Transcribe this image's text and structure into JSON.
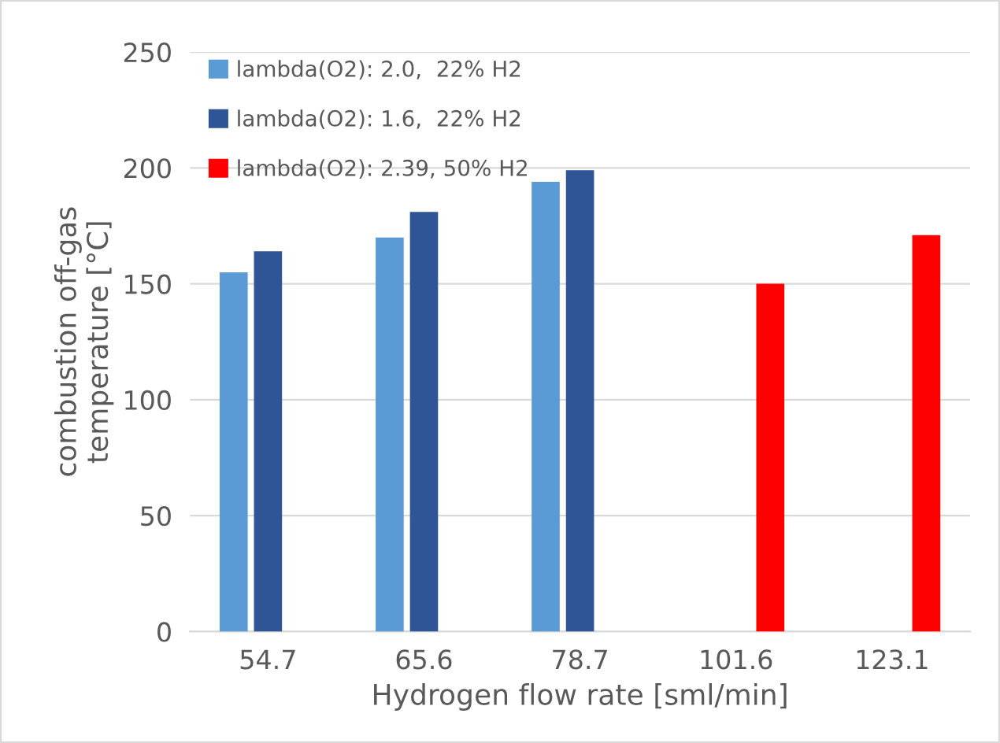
{
  "chart_data": {
    "type": "bar",
    "xlabel": "Hydrogen flow rate [sml/min]",
    "ylabel": "combustion off-gas\ntemperature [°C]",
    "categories": [
      "54.7",
      "65.6",
      "78.7",
      "101.6",
      "123.1"
    ],
    "series": [
      {
        "name": "lambda(O2): 2.0,  22% H2",
        "color": "#5b9bd5",
        "values": [
          155,
          170,
          194,
          null,
          null
        ]
      },
      {
        "name": "lambda(O2): 1.6,  22% H2",
        "color": "#2f5597",
        "values": [
          164,
          181,
          199,
          null,
          null
        ]
      },
      {
        "name": "lambda(O2): 2.39, 50% H2",
        "color": "#ff0000",
        "values": [
          null,
          null,
          null,
          150,
          171
        ]
      }
    ],
    "ylim": [
      0,
      250
    ],
    "yticks": [
      0,
      50,
      100,
      150,
      200,
      250
    ],
    "grid": "y",
    "legend": "top left"
  }
}
